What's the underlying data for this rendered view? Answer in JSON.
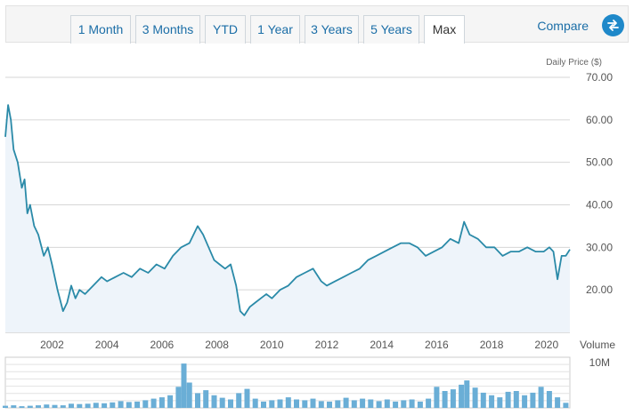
{
  "toolbar": {
    "tabs": [
      {
        "label": "1 Month",
        "active": false
      },
      {
        "label": "3 Months",
        "active": false
      },
      {
        "label": "YTD",
        "active": false
      },
      {
        "label": "1 Year",
        "active": false
      },
      {
        "label": "3 Years",
        "active": false
      },
      {
        "label": "5 Years",
        "active": false
      },
      {
        "label": "Max",
        "active": true
      }
    ],
    "compare_label": "Compare",
    "compare_icon": "swap-arrows-icon"
  },
  "colors": {
    "line": "#2a8aa8",
    "area_fill": "#eef4fa",
    "volume_bar": "#6aaed6",
    "grid": "#d6d6d6",
    "accent": "#1e88c9"
  },
  "chart_data": [
    {
      "type": "line",
      "ylabel": "Daily Price ($)",
      "ylim": [
        10,
        70
      ],
      "yticks": [
        "70.00",
        "60.00",
        "50.00",
        "40.00",
        "30.00",
        "20.00"
      ],
      "xlim": [
        2000.3,
        2020.85
      ],
      "xticks": [
        "2002",
        "2004",
        "2006",
        "2008",
        "2010",
        "2012",
        "2014",
        "2016",
        "2018",
        "2020"
      ],
      "grid": true,
      "series": [
        {
          "x": [
            2000.3,
            2000.4,
            2000.5,
            2000.6,
            2000.75,
            2000.9,
            2001.0,
            2001.1,
            2001.2,
            2001.35,
            2001.5,
            2001.7,
            2001.85,
            2002.0,
            2002.2,
            2002.4,
            2002.55,
            2002.7,
            2002.85,
            2003.0,
            2003.2,
            2003.5,
            2003.8,
            2004.0,
            2004.3,
            2004.6,
            2004.9,
            2005.2,
            2005.5,
            2005.8,
            2006.1,
            2006.4,
            2006.7,
            2007.0,
            2007.3,
            2007.5,
            2007.7,
            2007.9,
            2008.1,
            2008.3,
            2008.5,
            2008.7,
            2008.85,
            2009.0,
            2009.2,
            2009.4,
            2009.6,
            2009.8,
            2010.0,
            2010.3,
            2010.6,
            2010.9,
            2011.2,
            2011.5,
            2011.8,
            2012.0,
            2012.3,
            2012.6,
            2012.9,
            2013.2,
            2013.5,
            2013.8,
            2014.1,
            2014.4,
            2014.7,
            2015.0,
            2015.3,
            2015.6,
            2015.9,
            2016.2,
            2016.5,
            2016.8,
            2017.0,
            2017.2,
            2017.5,
            2017.8,
            2018.1,
            2018.4,
            2018.7,
            2019.0,
            2019.3,
            2019.6,
            2019.9,
            2020.1,
            2020.25,
            2020.4,
            2020.55,
            2020.7,
            2020.85
          ],
          "y": [
            56,
            63.5,
            60,
            53,
            50,
            44,
            46,
            38,
            40,
            35,
            33,
            28,
            30,
            26,
            20,
            15,
            17,
            21,
            18,
            20,
            19,
            21,
            23,
            22,
            23,
            24,
            23,
            25,
            24,
            26,
            25,
            28,
            30,
            31,
            35,
            33,
            30,
            27,
            26,
            25,
            26,
            21,
            15,
            14,
            16,
            17,
            18,
            19,
            18,
            20,
            21,
            23,
            24,
            25,
            22,
            21,
            22,
            23,
            24,
            25,
            27,
            28,
            29,
            30,
            31,
            31,
            30,
            28,
            29,
            30,
            32,
            31,
            36,
            33,
            32,
            30,
            30,
            28,
            29,
            29,
            30,
            29,
            29,
            30,
            29,
            22.5,
            28,
            28,
            29.5
          ]
        }
      ]
    },
    {
      "type": "bar",
      "ylabel": "Volume",
      "yticks": [
        "10M"
      ],
      "ylim": [
        0,
        12
      ],
      "grid": true,
      "series": [
        {
          "x": [
            2000.3,
            2000.6,
            2000.9,
            2001.2,
            2001.5,
            2001.8,
            2002.1,
            2002.4,
            2002.7,
            2003.0,
            2003.3,
            2003.6,
            2003.9,
            2004.2,
            2004.5,
            2004.8,
            2005.1,
            2005.4,
            2005.7,
            2006.0,
            2006.3,
            2006.6,
            2006.8,
            2007.0,
            2007.3,
            2007.6,
            2007.9,
            2008.2,
            2008.5,
            2008.8,
            2009.1,
            2009.4,
            2009.7,
            2010.0,
            2010.3,
            2010.6,
            2010.9,
            2011.2,
            2011.5,
            2011.8,
            2012.1,
            2012.4,
            2012.7,
            2013.0,
            2013.3,
            2013.6,
            2013.9,
            2014.2,
            2014.5,
            2014.8,
            2015.1,
            2015.4,
            2015.7,
            2016.0,
            2016.3,
            2016.6,
            2016.9,
            2017.1,
            2017.4,
            2017.7,
            2018.0,
            2018.3,
            2018.6,
            2018.9,
            2019.2,
            2019.5,
            2019.8,
            2020.1,
            2020.4,
            2020.7
          ],
          "y": [
            0.5,
            0.6,
            0.4,
            0.5,
            0.6,
            0.8,
            0.7,
            0.6,
            1.0,
            0.9,
            1.0,
            1.2,
            1.1,
            1.3,
            1.6,
            1.4,
            1.5,
            1.8,
            2.2,
            2.5,
            3.0,
            5.0,
            10.5,
            6.0,
            3.5,
            4.2,
            3.0,
            2.4,
            2.0,
            3.5,
            4.5,
            2.2,
            1.5,
            1.8,
            2.0,
            2.5,
            2.0,
            1.8,
            2.2,
            1.6,
            1.5,
            1.8,
            2.4,
            1.8,
            2.2,
            2.0,
            1.6,
            2.0,
            1.5,
            1.8,
            2.0,
            1.5,
            2.2,
            5.0,
            4.0,
            4.4,
            5.5,
            6.5,
            4.8,
            3.6,
            3.0,
            2.5,
            3.8,
            4.0,
            3.0,
            3.6,
            5.0,
            4.0,
            2.5,
            1.2
          ]
        }
      ]
    }
  ]
}
